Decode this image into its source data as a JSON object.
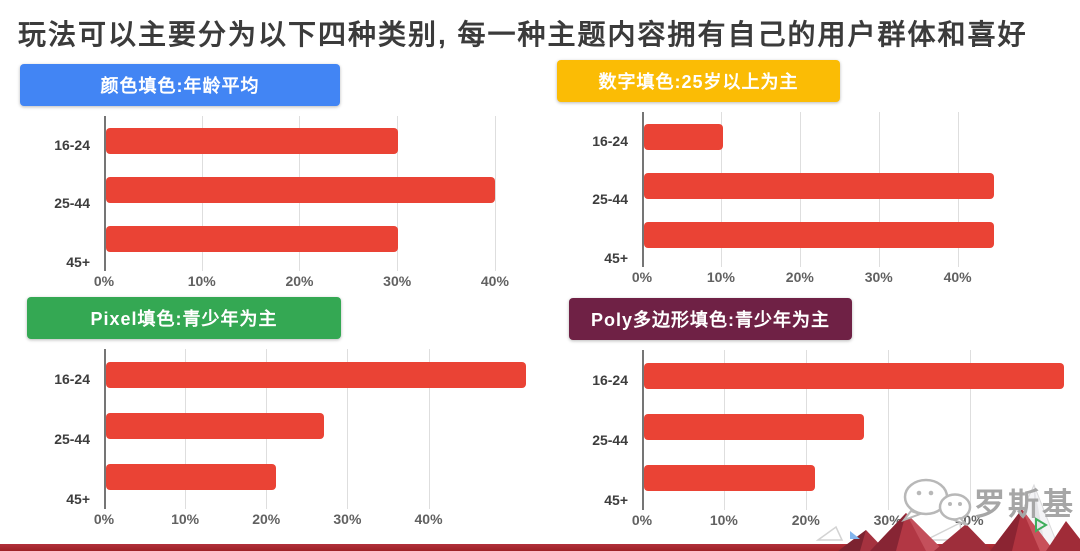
{
  "title": "玩法可以主要分为以下四种类别, 每一种主题内容拥有自己的用户群体和喜好",
  "watermark": {
    "brand": "罗斯基",
    "icon": "wechat-logo"
  },
  "colors": {
    "bar": "#EA4335",
    "axis_line": "#757575",
    "gridline": "#DEDEDE",
    "bottom_strip_top": "#B2303A",
    "bottom_strip": "#9C2125",
    "title_text": "#3B3B3B"
  },
  "chart_data": [
    {
      "type": "bar",
      "orientation": "horizontal",
      "title": "颜色填色:年龄平均",
      "header_bg": "#4285F4",
      "categories": [
        "16-24",
        "25-44",
        "45+"
      ],
      "values": [
        30,
        40,
        30
      ],
      "unit": "%",
      "tick_values": [
        0,
        10,
        20,
        30,
        40
      ],
      "tick_labels": [
        "0%",
        "10%",
        "20%",
        "30%",
        "40%"
      ],
      "axis_max": 44,
      "bar_color": "#EA4335",
      "grid": true,
      "legend": false
    },
    {
      "type": "bar",
      "orientation": "horizontal",
      "title": "数字填色:25岁以上为主",
      "header_bg": "#FBBC05",
      "categories": [
        "16-24",
        "25-44",
        "45+"
      ],
      "values": [
        10,
        44.5,
        44.5
      ],
      "unit": "%",
      "tick_values": [
        0,
        10,
        20,
        30,
        40
      ],
      "tick_labels": [
        "0%",
        "10%",
        "20%",
        "30%",
        "40%"
      ],
      "axis_max": 55,
      "bar_color": "#EA4335",
      "grid": true,
      "legend": false
    },
    {
      "type": "bar",
      "orientation": "horizontal",
      "title": "Pixel填色:青少年为主",
      "header_bg": "#34A853",
      "categories": [
        "16-24",
        "25-44",
        "45+"
      ],
      "values": [
        52,
        27,
        21
      ],
      "unit": "%",
      "tick_values": [
        0,
        10,
        20,
        30,
        40
      ],
      "tick_labels": [
        "0%",
        "10%",
        "20%",
        "30%",
        "40%"
      ],
      "axis_max": 53,
      "bar_color": "#EA4335",
      "grid": true,
      "legend": false
    },
    {
      "type": "bar",
      "orientation": "horizontal",
      "title": "Poly多边形填色:青少年为主",
      "header_bg": "#6F2145",
      "categories": [
        "16-24",
        "25-44",
        "45+"
      ],
      "values": [
        51.5,
        27,
        21
      ],
      "unit": "%",
      "tick_values": [
        0,
        10,
        20,
        30,
        40
      ],
      "tick_labels": [
        "0%",
        "10%",
        "20%",
        "30%",
        "40%"
      ],
      "axis_max": 53,
      "bar_color": "#EA4335",
      "grid": true,
      "legend": false
    }
  ]
}
